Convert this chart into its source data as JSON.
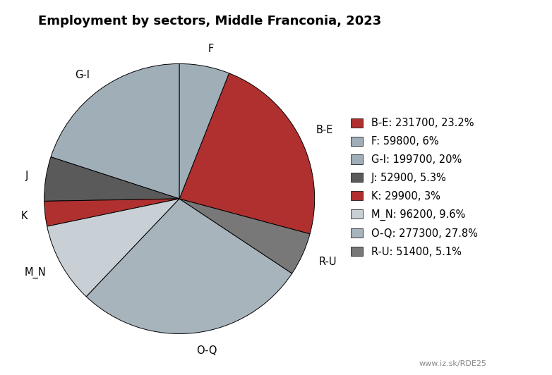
{
  "title": "Employment by sectors, Middle Franconia, 2023",
  "sectors": [
    "B-E",
    "F",
    "G-I",
    "J",
    "K",
    "M_N",
    "O-Q",
    "R-U"
  ],
  "values": [
    231700,
    59800,
    199700,
    52900,
    29900,
    96200,
    277300,
    51400
  ],
  "legend_labels": [
    "B-E: 231700, 23.2%",
    "F: 59800, 6%",
    "G-I: 199700, 20%",
    "J: 52900, 5.3%",
    "K: 29900, 3%",
    "M_N: 96200, 9.6%",
    "O-Q: 277300, 27.8%",
    "R-U: 51400, 5.1%"
  ],
  "plot_order": [
    "G-I",
    "J",
    "K",
    "M_N",
    "O-Q",
    "R-U",
    "B-E",
    "F"
  ],
  "color_map": {
    "B-E": "#b03030",
    "F": "#a0aeb8",
    "G-I": "#a0aeb8",
    "J": "#5a5a5a",
    "K": "#b03030",
    "M_N": "#c8d0d6",
    "O-Q": "#a8b4bc",
    "R-U": "#787878"
  },
  "watermark": "www.iz.sk/RDE25",
  "title_fontsize": 13,
  "legend_fontsize": 10.5
}
